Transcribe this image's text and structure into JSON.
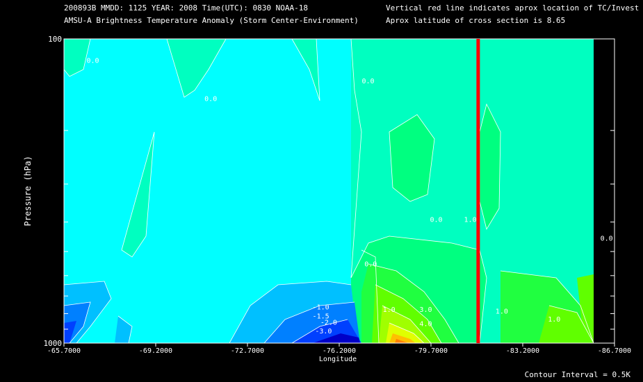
{
  "header": {
    "line1_left": "200893B  MMDD: 1125 YEAR: 2008 Time(UTC): 0830 NOAA-18",
    "line2_left": "AMSU-A Brightness Temperature Anomaly (Storm Center-Environment)",
    "line1_right": "Vertical red line indicates aprox location of TC/Invest",
    "line2_right": "Aprox latitude of cross section is 8.65"
  },
  "footer": {
    "contour_interval": "Contour Interval = 0.5K"
  },
  "colors": {
    "background": "#000000",
    "tc_line": "#ff0000",
    "scale": [
      "#0000c8",
      "#0040ff",
      "#0080ff",
      "#00c0ff",
      "#00ffff",
      "#00ffc0",
      "#00ff80",
      "#20ff40",
      "#60ff00",
      "#a0ff00",
      "#e0ff00",
      "#ffc000",
      "#ff8000",
      "#ff4000"
    ]
  },
  "chart_data": {
    "type": "contour",
    "title": "AMSU-A Brightness Temperature Anomaly (Storm Center-Environment)",
    "xlabel": "Longitude",
    "ylabel": "Pressure (hPa)",
    "xlim": [
      -65.7,
      -86.7
    ],
    "ylim": [
      1000,
      100
    ],
    "y_scale": "log",
    "x_ticks": [
      "-65.7000",
      "-69.2000",
      "-72.7000",
      "-76.2000",
      "-79.7000",
      "-83.2000",
      "-86.7000"
    ],
    "x_tick_values": [
      -65.7,
      -69.2,
      -72.7,
      -76.2,
      -79.7,
      -83.2,
      -86.7
    ],
    "y_tick_labels": [
      "100",
      "1000"
    ],
    "y_tick_values": [
      100,
      1000
    ],
    "contour_interval": 0.5,
    "tc_longitude": -81.5,
    "contour_labels": [
      {
        "text": "0.0",
        "lon": -66.8,
        "p": 120
      },
      {
        "text": "0.0",
        "lon": -71.3,
        "p": 160
      },
      {
        "text": "0.0",
        "lon": -77.3,
        "p": 140
      },
      {
        "text": "-1.0",
        "lon": -75.5,
        "p": 775
      },
      {
        "text": "-1.5",
        "lon": -75.5,
        "p": 830
      },
      {
        "text": "-2.0",
        "lon": -75.8,
        "p": 870
      },
      {
        "text": "-3.0",
        "lon": -75.6,
        "p": 930
      },
      {
        "text": "0.0",
        "lon": -77.4,
        "p": 560
      },
      {
        "text": "0.0",
        "lon": -79.9,
        "p": 400
      },
      {
        "text": "1.0",
        "lon": -81.2,
        "p": 400
      },
      {
        "text": "0.0",
        "lon": -86.4,
        "p": 460
      },
      {
        "text": "1.0",
        "lon": -78.1,
        "p": 790
      },
      {
        "text": "3.0",
        "lon": -79.5,
        "p": 790
      },
      {
        "text": "4.0",
        "lon": -79.5,
        "p": 880
      },
      {
        "text": "1.0",
        "lon": -82.4,
        "p": 800
      },
      {
        "text": "1.0",
        "lon": -84.4,
        "p": 850
      }
    ],
    "grid": false
  }
}
